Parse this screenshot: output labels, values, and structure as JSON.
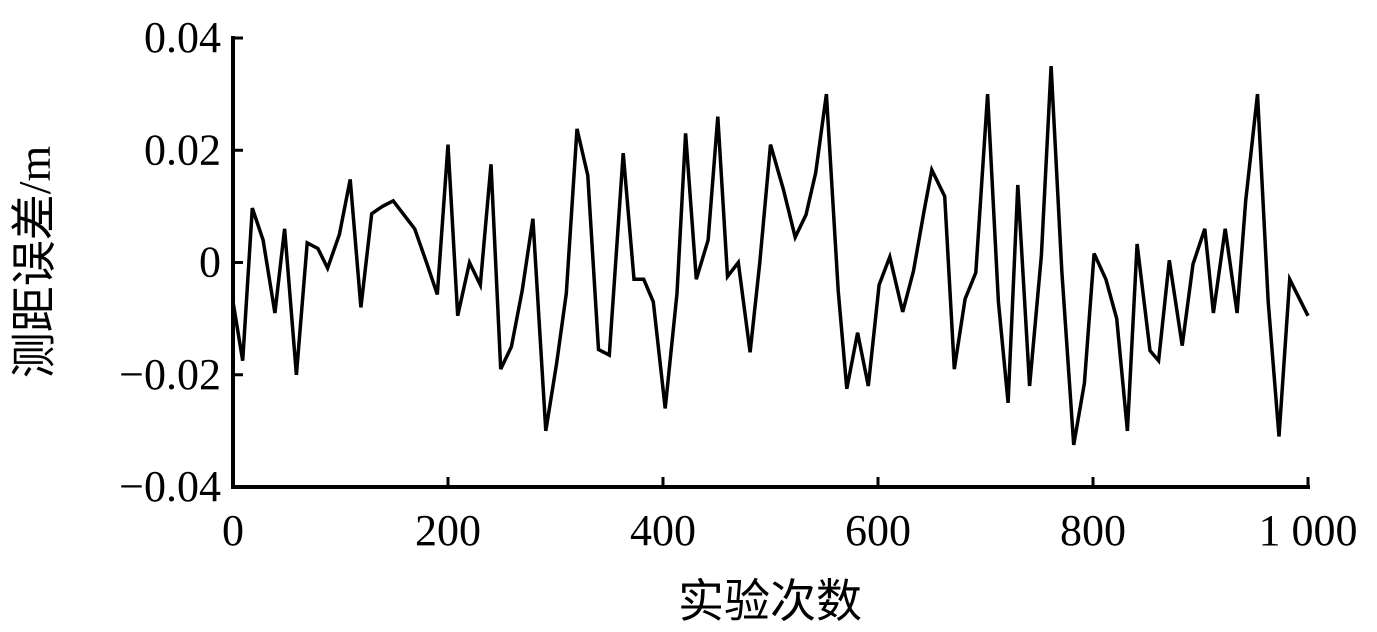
{
  "chart_data": {
    "type": "line",
    "title": "",
    "xlabel": "实验次数",
    "ylabel": "测距误差/m",
    "xlim": [
      0,
      1000
    ],
    "ylim": [
      -0.04,
      0.04
    ],
    "xticks": [
      0,
      200,
      400,
      600,
      800,
      1000
    ],
    "xtick_labels": [
      "0",
      "200",
      "400",
      "600",
      "800",
      "1 000"
    ],
    "yticks": [
      -0.04,
      -0.02,
      0,
      0.02,
      0.04
    ],
    "ytick_labels": [
      "−0.04",
      "−0.02",
      "0",
      "0.02",
      "0.04"
    ],
    "grid": false,
    "line_color": "#000000",
    "series": [
      {
        "x": [
          0,
          9,
          18,
          28,
          39,
          48,
          59,
          69,
          79,
          88,
          99,
          109,
          119,
          129,
          139,
          149,
          159,
          169,
          180,
          190,
          200,
          209,
          220,
          230,
          240,
          249,
          259,
          269,
          279,
          291,
          301,
          310,
          320,
          330,
          340,
          350,
          363,
          373,
          382,
          391,
          402,
          413,
          421,
          431,
          442,
          451,
          460,
          470,
          481,
          490,
          500,
          512,
          523,
          533,
          542,
          552,
          563,
          571,
          581,
          591,
          601,
          611,
          623,
          633,
          643,
          650,
          662,
          671,
          681,
          691,
          702,
          712,
          721,
          730,
          741,
          752,
          761,
          771,
          782,
          792,
          801,
          812,
          822,
          832,
          841,
          853,
          861,
          871,
          883,
          893,
          904,
          912,
          923,
          934,
          942,
          953,
          963,
          973,
          983,
          1000
        ],
        "y": [
          -0.007,
          -0.0175,
          0.0097,
          0.004,
          -0.009,
          0.006,
          -0.02,
          0.0035,
          0.0025,
          -0.001,
          0.005,
          0.0148,
          -0.008,
          0.0087,
          0.01,
          0.011,
          0.0085,
          0.006,
          0.0,
          -0.0057,
          0.021,
          -0.0095,
          0.0,
          -0.004,
          0.0175,
          -0.019,
          -0.015,
          -0.005,
          0.0078,
          -0.03,
          -0.018,
          -0.0055,
          0.0238,
          0.0155,
          -0.0155,
          -0.0165,
          0.0195,
          -0.003,
          -0.003,
          -0.007,
          -0.026,
          -0.0055,
          0.023,
          -0.003,
          0.004,
          0.026,
          -0.0025,
          0.0,
          -0.016,
          0.0,
          0.021,
          0.013,
          0.0045,
          0.0085,
          0.016,
          0.03,
          -0.005,
          -0.0225,
          -0.0125,
          -0.022,
          -0.004,
          0.001,
          -0.0088,
          -0.0015,
          0.0093,
          0.0165,
          0.0118,
          -0.019,
          -0.0065,
          -0.0018,
          0.03,
          -0.007,
          -0.025,
          0.0138,
          -0.022,
          0.0013,
          0.035,
          -0.0015,
          -0.0325,
          -0.0215,
          0.0016,
          -0.003,
          -0.01,
          -0.03,
          0.0033,
          -0.0157,
          -0.0175,
          0.0004,
          -0.0148,
          -0.0003,
          0.006,
          -0.009,
          0.006,
          -0.009,
          0.011,
          0.03,
          -0.007,
          -0.031,
          -0.003,
          -0.0095
        ]
      }
    ]
  }
}
